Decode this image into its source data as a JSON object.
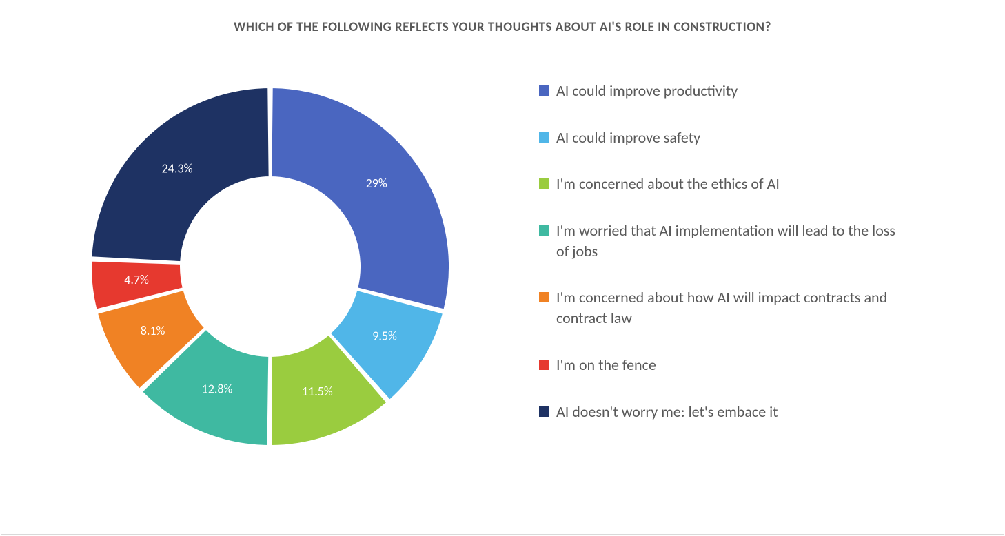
{
  "chart": {
    "type": "donut",
    "title": "WHICH OF THE FOLLOWING REFLECTS YOUR THOUGHTS ABOUT AI'S ROLE IN CONSTRUCTION?",
    "title_fontsize": 19,
    "title_fontweight": 700,
    "title_color": "#595959",
    "background_color": "#ffffff",
    "border_color": "#d9d9d9",
    "inner_radius_ratio": 0.5,
    "outer_radius": 260,
    "slice_gap_deg": 1.2,
    "slice_stroke": "#ffffff",
    "slice_stroke_width": 2,
    "slice_label_color": "#ffffff",
    "slice_label_fontsize": 18,
    "legend_fontsize": 22,
    "legend_text_color": "#595959",
    "legend_swatch_size": 15,
    "start_angle_deg": -90,
    "aspect_width": 1458,
    "aspect_height": 777,
    "slices": [
      {
        "label": "AI could improve productivity",
        "value": 29.0,
        "display": "29%",
        "color": "#4a66c0"
      },
      {
        "label": "AI could improve safety",
        "value": 9.5,
        "display": "9.5%",
        "color": "#50b6e8"
      },
      {
        "label": "I'm concerned about the ethics of AI",
        "value": 11.5,
        "display": "11.5%",
        "color": "#9acc3f"
      },
      {
        "label": "I'm worried that AI implementation will lead to the loss of jobs",
        "value": 12.8,
        "display": "12.8%",
        "color": "#3fb9a1"
      },
      {
        "label": "I'm concerned about how AI will impact contracts and contract law",
        "value": 8.1,
        "display": "8.1%",
        "color": "#f08224"
      },
      {
        "label": "I'm on the fence",
        "value": 4.7,
        "display": "4.7%",
        "color": "#e6392f"
      },
      {
        "label": "AI doesn't worry me: let's embace it",
        "value": 24.3,
        "display": "24.3%",
        "color": "#1e3263"
      }
    ]
  }
}
